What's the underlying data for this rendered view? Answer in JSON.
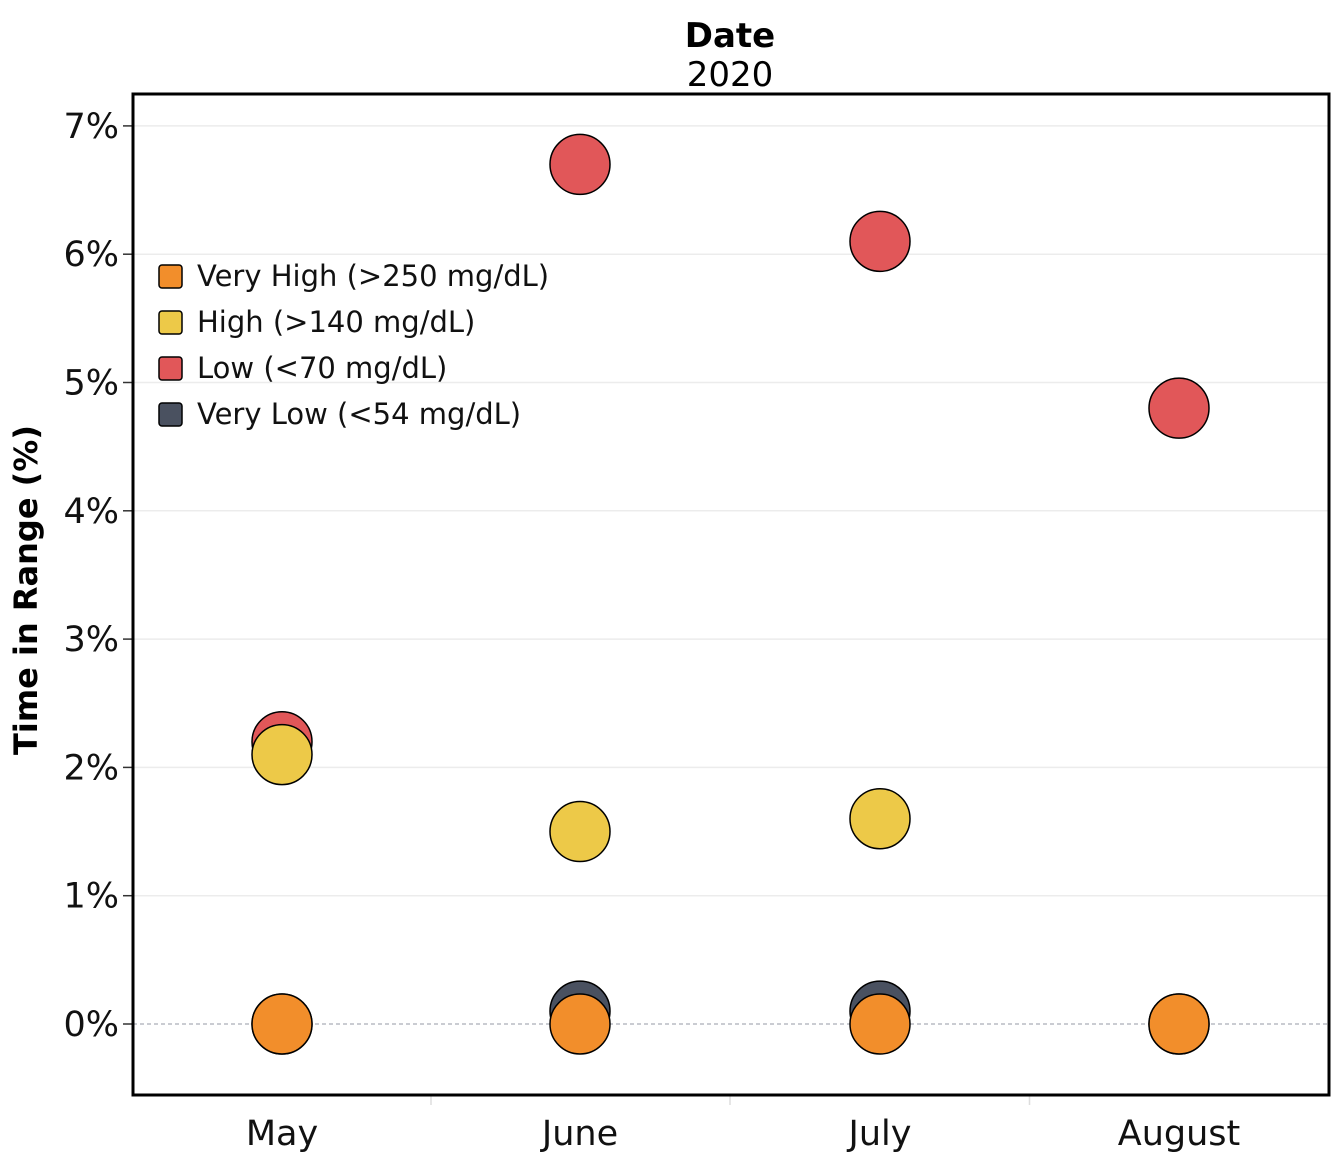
{
  "chart_data": {
    "type": "scatter",
    "title": "Date",
    "subtitle": "2020",
    "xlabel": "",
    "ylabel": "Time in Range (%)",
    "categories": [
      "May",
      "June",
      "July",
      "August"
    ],
    "ylim": [
      -0.55,
      7.25
    ],
    "yticks": [
      0,
      1,
      2,
      3,
      4,
      5,
      6,
      7
    ],
    "ytick_labels": [
      "0%",
      "1%",
      "2%",
      "3%",
      "4%",
      "5%",
      "6%",
      "7%"
    ],
    "grid": true,
    "legend_position": "top-left",
    "series": [
      {
        "name": "Very Low (<54 mg/dL)",
        "color": "#4a5160",
        "values": [
          0.0,
          0.1,
          0.1,
          0.0
        ]
      },
      {
        "name": "Low (<70 mg/dL)",
        "color": "#e15759",
        "values": [
          2.2,
          6.7,
          6.1,
          4.8
        ]
      },
      {
        "name": "High (>140 mg/dL)",
        "color": "#edc948",
        "values": [
          2.1,
          1.5,
          1.6,
          null
        ]
      },
      {
        "name": "Very High (>250 mg/dL)",
        "color": "#f28e2b",
        "values": [
          0.0,
          0.0,
          0.0,
          0.0
        ]
      }
    ],
    "legend_order": [
      3,
      2,
      1,
      0
    ]
  }
}
